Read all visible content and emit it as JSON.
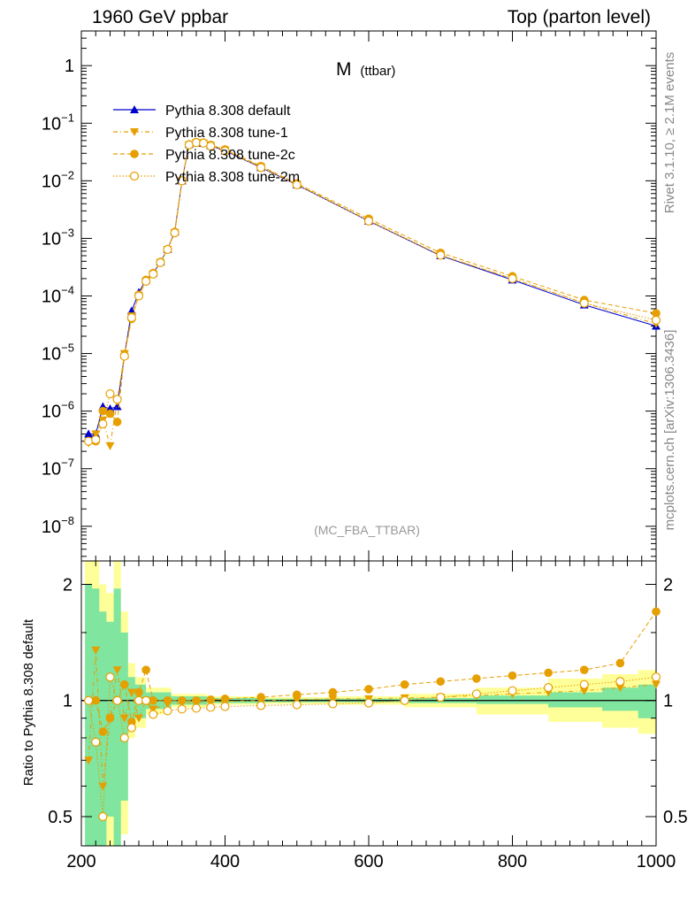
{
  "header": {
    "left": "1960 GeV ppbar",
    "right": "Top (parton level)"
  },
  "side": {
    "rivet": "Rivet 3.1.10, ≥ 2.1M events",
    "site": "mcplots.cern.ch [arXiv:1306.3436]"
  },
  "colors": {
    "default": "#0000cc",
    "tunes": "#e69f00",
    "band_inner": "#7fe59f",
    "band_outer": "#ffff99",
    "watermark": "#999999"
  },
  "chart_data": [
    {
      "type": "line",
      "title": "M (ttbar)",
      "title_main": "M",
      "title_sub": "(ttbar)",
      "watermark": "(MC_FBA_TTBAR)",
      "yscale": "log",
      "xlim": [
        200,
        1000
      ],
      "ylim": [
        2.5e-09,
        4.0
      ],
      "ytick_values": [
        1e-08,
        1e-07,
        1e-06,
        1e-05,
        0.0001,
        0.001,
        0.01,
        0.1,
        1
      ],
      "ytick_labels": [
        {
          "base": "10",
          "exp": "−8"
        },
        {
          "base": "10",
          "exp": "−7"
        },
        {
          "base": "10",
          "exp": "−6"
        },
        {
          "base": "10",
          "exp": "−5"
        },
        {
          "base": "10",
          "exp": "−4"
        },
        {
          "base": "10",
          "exp": "−3"
        },
        {
          "base": "10",
          "exp": "−2"
        },
        {
          "base": "10",
          "exp": "−1"
        },
        {
          "base": "1",
          "exp": ""
        }
      ],
      "legend_position": "top-left",
      "series": [
        {
          "name": "Pythia 8.308 default",
          "color": "#0000cc",
          "marker": "triangle-up",
          "line": "solid",
          "x": [
            210,
            220,
            230,
            240,
            250,
            260,
            270,
            280,
            290,
            300,
            310,
            320,
            330,
            340,
            350,
            360,
            370,
            380,
            400,
            450,
            500,
            600,
            700,
            800,
            900,
            1000
          ],
          "y": [
            4e-07,
            4e-07,
            1.2e-06,
            1.1e-06,
            1.2e-06,
            9.5e-06,
            5.5e-05,
            0.000115,
            0.00019,
            0.00025,
            0.00039,
            0.00065,
            0.0013,
            0.01,
            0.043,
            0.046,
            0.045,
            0.041,
            0.033,
            0.017,
            0.0085,
            0.002,
            0.0005,
            0.00019,
            7e-05,
            3e-05
          ]
        },
        {
          "name": "Pythia 8.308 tune-1",
          "color": "#e69f00",
          "marker": "triangle-down",
          "line": "dash-dot",
          "x": [
            210,
            220,
            230,
            240,
            250,
            260,
            270,
            280,
            290,
            300,
            310,
            320,
            330,
            340,
            350,
            360,
            370,
            380,
            400,
            450,
            500,
            600,
            700,
            800,
            900,
            1000
          ],
          "y": [
            2.8e-07,
            4e-07,
            7e-07,
            2.5e-07,
            1.5e-06,
            1e-05,
            4.5e-05,
            0.0001,
            0.00018,
            0.00024,
            0.00038,
            0.00064,
            0.00125,
            0.01,
            0.042,
            0.046,
            0.045,
            0.041,
            0.034,
            0.0175,
            0.0087,
            0.00205,
            0.00051,
            0.0002,
            7.5e-05,
            3.3e-05
          ]
        },
        {
          "name": "Pythia 8.308 tune-2c",
          "color": "#e69f00",
          "marker": "circle-filled",
          "line": "dashed",
          "x": [
            210,
            220,
            230,
            240,
            250,
            260,
            270,
            280,
            290,
            300,
            310,
            320,
            330,
            340,
            350,
            360,
            370,
            380,
            400,
            450,
            500,
            600,
            700,
            800,
            900,
            1000
          ],
          "y": [
            3e-07,
            3e-07,
            1e-06,
            9e-07,
            6.5e-07,
            9.5e-06,
            4e-05,
            0.000105,
            0.00019,
            0.00025,
            0.00039,
            0.00065,
            0.0013,
            0.01,
            0.043,
            0.047,
            0.046,
            0.042,
            0.035,
            0.018,
            0.009,
            0.0022,
            0.00056,
            0.00022,
            8.5e-05,
            5e-05
          ]
        },
        {
          "name": "Pythia 8.308 tune-2m",
          "color": "#e69f00",
          "marker": "circle-open",
          "line": "dotted",
          "x": [
            210,
            220,
            230,
            240,
            250,
            260,
            270,
            280,
            290,
            300,
            310,
            320,
            330,
            340,
            350,
            360,
            370,
            380,
            400,
            450,
            500,
            600,
            700,
            800,
            900,
            1000
          ],
          "y": [
            3e-07,
            3.2e-07,
            6e-07,
            2e-06,
            1.6e-06,
            9e-06,
            4.2e-05,
            0.0001,
            0.00018,
            0.00024,
            0.00038,
            0.00064,
            0.00125,
            0.01,
            0.042,
            0.046,
            0.045,
            0.04,
            0.033,
            0.017,
            0.0085,
            0.002,
            0.00051,
            0.0002,
            7.5e-05,
            3.8e-05
          ]
        }
      ]
    },
    {
      "type": "line",
      "ylabel": "Ratio to Pythia 8.308 default",
      "xlim": [
        200,
        1000
      ],
      "ylim": [
        0.42,
        2.3
      ],
      "xticks": [
        200,
        400,
        600,
        800,
        1000
      ],
      "yticks": [
        0.5,
        1,
        2
      ],
      "ytick_labels": [
        "0.5",
        "1",
        "2"
      ],
      "reference_line": 1,
      "bands": {
        "x": [
          210,
          220,
          230,
          240,
          250,
          260,
          270,
          280,
          300,
          350,
          400,
          500,
          600,
          700,
          800,
          900,
          950,
          1000
        ],
        "inner_low": [
          0.35,
          0.35,
          0.4,
          0.5,
          0.35,
          0.55,
          0.85,
          0.9,
          0.95,
          0.975,
          0.985,
          0.99,
          0.99,
          0.985,
          0.98,
          0.96,
          0.94,
          0.9
        ],
        "inner_high": [
          2.0,
          1.95,
          1.7,
          1.6,
          1.95,
          1.5,
          1.15,
          1.1,
          1.05,
          1.025,
          1.015,
          1.01,
          1.01,
          1.015,
          1.03,
          1.05,
          1.08,
          1.1
        ],
        "outer_low": [
          0.3,
          0.3,
          0.35,
          0.4,
          0.3,
          0.45,
          0.8,
          0.85,
          0.92,
          0.96,
          0.975,
          0.98,
          0.975,
          0.96,
          0.92,
          0.88,
          0.85,
          0.82
        ],
        "outer_high": [
          2.3,
          2.3,
          2.0,
          1.9,
          2.3,
          1.7,
          1.25,
          1.15,
          1.08,
          1.04,
          1.025,
          1.02,
          1.025,
          1.04,
          1.08,
          1.14,
          1.17,
          1.2
        ]
      },
      "series": [
        {
          "name": "Pythia 8.308 tune-1",
          "x": [
            210,
            220,
            230,
            240,
            250,
            260,
            270,
            280,
            290,
            300,
            320,
            340,
            360,
            380,
            400,
            450,
            500,
            550,
            600,
            650,
            700,
            750,
            800,
            850,
            900,
            950,
            1000
          ],
          "y": [
            0.7,
            1.35,
            0.6,
            0.9,
            1.2,
            0.9,
            1.05,
            0.9,
            1.0,
            0.95,
            0.98,
            0.985,
            0.99,
            0.99,
            0.995,
            1.0,
            1.005,
            1.01,
            1.01,
            1.015,
            1.02,
            1.03,
            1.04,
            1.05,
            1.06,
            1.08,
            1.1
          ]
        },
        {
          "name": "Pythia 8.308 tune-2c",
          "x": [
            210,
            220,
            230,
            240,
            250,
            260,
            270,
            280,
            290,
            300,
            320,
            340,
            360,
            380,
            400,
            450,
            500,
            550,
            600,
            650,
            700,
            750,
            800,
            850,
            900,
            950,
            1000
          ],
          "y": [
            1.0,
            1.0,
            0.83,
            0.9,
            1.0,
            1.1,
            0.88,
            1.05,
            1.2,
            1.0,
            1.0,
            1.0,
            1.0,
            1.005,
            1.01,
            1.02,
            1.035,
            1.05,
            1.07,
            1.1,
            1.12,
            1.14,
            1.16,
            1.18,
            1.2,
            1.25,
            1.7
          ]
        },
        {
          "name": "Pythia 8.308 tune-2m",
          "x": [
            210,
            220,
            230,
            240,
            250,
            260,
            270,
            280,
            290,
            300,
            320,
            340,
            360,
            380,
            400,
            450,
            500,
            550,
            600,
            650,
            700,
            750,
            800,
            850,
            900,
            950,
            1000
          ],
          "y": [
            1.0,
            0.78,
            0.5,
            1.15,
            1.0,
            0.8,
            0.85,
            1.0,
            1.0,
            0.92,
            0.94,
            0.95,
            0.955,
            0.96,
            0.965,
            0.97,
            0.975,
            0.98,
            0.985,
            1.0,
            1.02,
            1.04,
            1.06,
            1.08,
            1.1,
            1.12,
            1.15
          ]
        }
      ]
    }
  ]
}
